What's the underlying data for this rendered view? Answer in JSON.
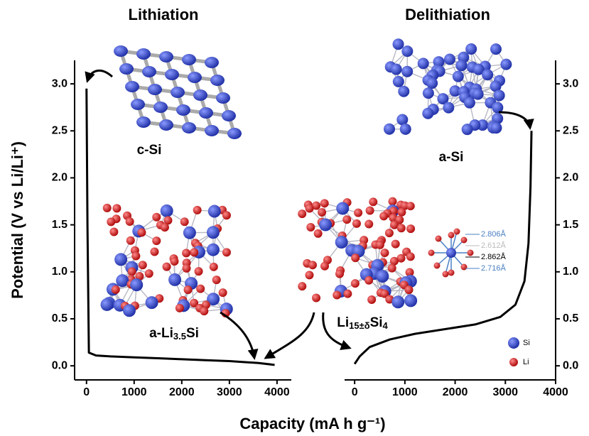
{
  "axes": {
    "ylabel": "Potential (V vs Li/Li⁺)",
    "xlabel": "Capacity (mA h g⁻¹)"
  },
  "chart_data": [
    {
      "type": "line",
      "title": "Lithiation",
      "x": [
        0,
        20,
        50,
        200,
        500,
        1000,
        1500,
        2000,
        2500,
        3000,
        3300,
        3600,
        3950
      ],
      "series": [
        {
          "name": "Lithiation",
          "color": "#000000",
          "values": [
            2.95,
            1.5,
            0.14,
            0.11,
            0.1,
            0.09,
            0.08,
            0.07,
            0.06,
            0.05,
            0.04,
            0.03,
            0.01
          ]
        }
      ],
      "xlim": [
        -250,
        4300
      ],
      "ylim": [
        -0.15,
        3.25
      ],
      "xticks": [
        0,
        1000,
        2000,
        3000,
        4000
      ],
      "yticks": [
        {
          "value": 0,
          "label": "0.0"
        },
        0.5,
        {
          "value": 1,
          "label": "1.0"
        },
        1.5,
        {
          "value": 2,
          "label": "2.0"
        },
        2.5,
        {
          "value": 3,
          "label": "3.0"
        }
      ],
      "yaxis_side": "left"
    },
    {
      "type": "line",
      "title": "Delithiation",
      "x": [
        0,
        100,
        300,
        700,
        1200,
        1800,
        2400,
        2900,
        3200,
        3380,
        3460,
        3500,
        3520
      ],
      "series": [
        {
          "name": "Delithiation",
          "color": "#000000",
          "values": [
            0.02,
            0.1,
            0.2,
            0.28,
            0.34,
            0.39,
            0.44,
            0.52,
            0.65,
            0.9,
            1.3,
            1.9,
            2.5
          ]
        }
      ],
      "xlim": [
        -200,
        4000
      ],
      "ylim": [
        -0.15,
        3.25
      ],
      "xticks": [
        0,
        1000,
        2000,
        3000,
        4000
      ],
      "yticks": [
        {
          "value": 0,
          "label": "0.0"
        },
        0.5,
        {
          "value": 1,
          "label": "1.0"
        },
        1.5,
        {
          "value": 2,
          "label": "2.0"
        },
        2.5,
        {
          "value": 3,
          "label": "3.0"
        }
      ],
      "yaxis_side": "right"
    }
  ],
  "annotations": [
    {
      "parts": [
        "c-Si"
      ]
    },
    {
      "parts": [
        "a-Si"
      ]
    },
    {
      "parts": [
        "a-Li",
        "3.5",
        "Si"
      ]
    },
    {
      "parts": [
        "Li",
        "15±δ",
        "Si",
        "4"
      ]
    }
  ],
  "bond_lengths": [
    {
      "label": "2.806Å",
      "color": "#4a80c4"
    },
    {
      "label": "2.612Å",
      "color": "#bbbbbb"
    },
    {
      "label": "2.862Å",
      "color": "#000000"
    },
    {
      "label": "2.716Å",
      "color": "#4a80c4"
    }
  ],
  "legend": [
    {
      "name": "Si",
      "color": "#3346c0"
    },
    {
      "name": "Li",
      "color": "#d01c1c"
    }
  ]
}
